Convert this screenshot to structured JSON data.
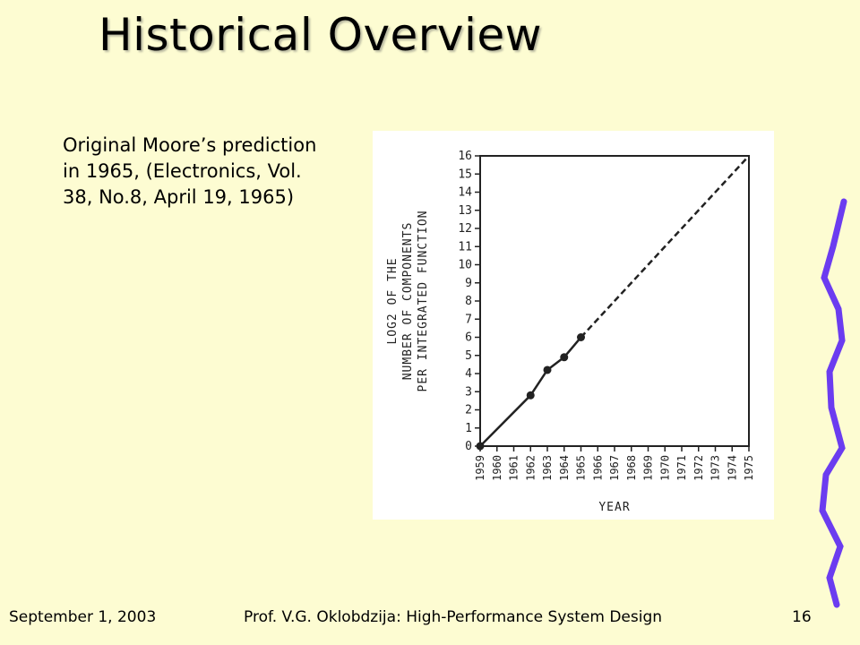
{
  "slide": {
    "title": "Historical Overview",
    "caption": "Original Moore’s prediction in 1965, (Electronics, Vol. 38, No.8, April 19, 1965)",
    "footer": {
      "date": "September 1, 2003",
      "center": "Prof. V.G. Oklobdzija: High-Performance System Design",
      "page": "16"
    },
    "accent_color": "#6b3cf0"
  },
  "chart_data": {
    "type": "line",
    "xlabel": "YEAR",
    "ylabel_lines": [
      "LOG2 OF THE",
      "NUMBER OF COMPONENTS",
      "PER INTEGRATED FUNCTION"
    ],
    "x_ticks": [
      1959,
      1960,
      1961,
      1962,
      1963,
      1964,
      1965,
      1966,
      1967,
      1968,
      1969,
      1970,
      1971,
      1972,
      1973,
      1974,
      1975
    ],
    "y_ticks": [
      0,
      1,
      2,
      3,
      4,
      5,
      6,
      7,
      8,
      9,
      10,
      11,
      12,
      13,
      14,
      15,
      16
    ],
    "xlim": [
      1959,
      1975
    ],
    "ylim": [
      0,
      16
    ],
    "grid": false,
    "series": [
      {
        "style": "solid",
        "x": [
          1959,
          1962,
          1963,
          1964,
          1965
        ],
        "y": [
          0,
          2.8,
          4.2,
          4.9,
          6
        ],
        "markers": true
      },
      {
        "style": "dashed",
        "x": [
          1965,
          1975
        ],
        "y": [
          6,
          16
        ],
        "markers": false
      }
    ]
  }
}
